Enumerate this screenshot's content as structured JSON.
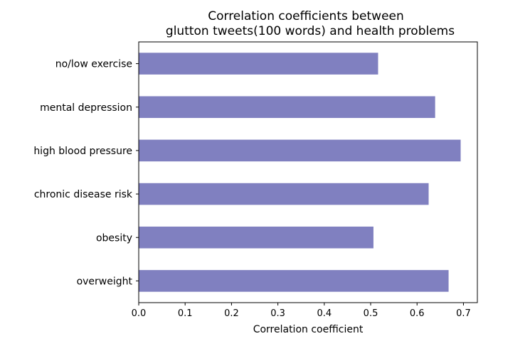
{
  "chart_data": {
    "type": "bar",
    "orientation": "horizontal",
    "title": "Correlation coefficients between",
    "subtitle": "glutton tweets(100 words) and health problems",
    "xlabel": "Correlation coefficient",
    "ylabel": "",
    "categories": [
      "overweight",
      "obesity",
      "chronic disease risk",
      "high blood pressure",
      "mental depression",
      "no/low exercise"
    ],
    "values": [
      0.668,
      0.506,
      0.625,
      0.694,
      0.639,
      0.516
    ],
    "xlim": [
      0,
      0.73
    ],
    "xticks": [
      0.0,
      0.1,
      0.2,
      0.3,
      0.4,
      0.5,
      0.6,
      0.7
    ],
    "xtick_labels": [
      "0.0",
      "0.1",
      "0.2",
      "0.3",
      "0.4",
      "0.5",
      "0.6",
      "0.7"
    ],
    "bar_color": "#8080c0",
    "grid": false,
    "legend": "none"
  }
}
